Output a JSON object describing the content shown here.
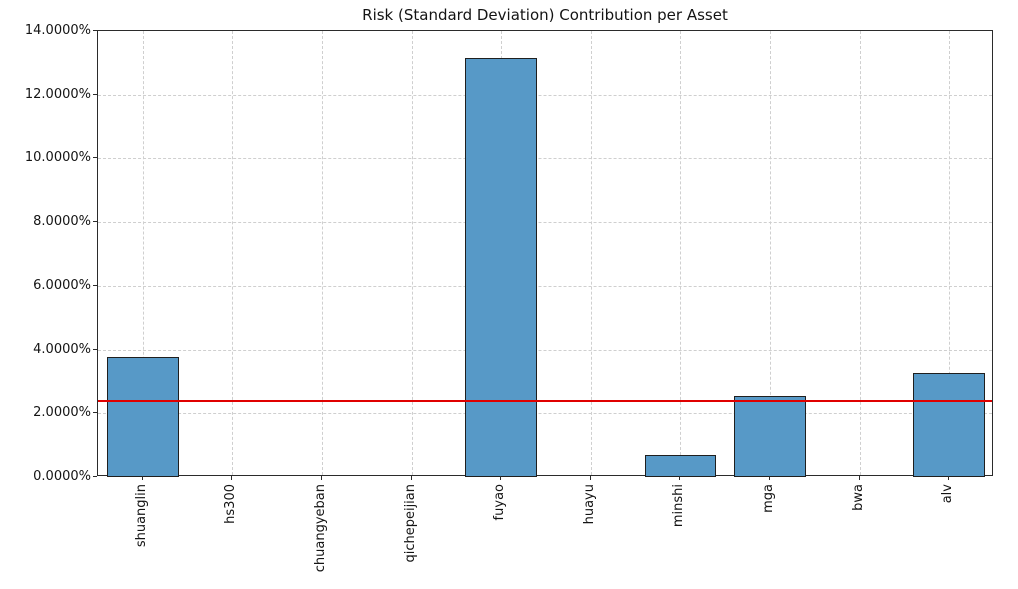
{
  "chart_data": {
    "type": "bar",
    "title": "Risk (Standard Deviation) Contribution per Asset",
    "xlabel": "",
    "ylabel": "",
    "categories": [
      "shuanglin",
      "hs300",
      "chuangyeban",
      "qichepeijian",
      "fuyao",
      "huayu",
      "minshi",
      "mga",
      "bwa",
      "alv"
    ],
    "values": [
      3.78,
      0.0,
      0.0,
      0.0,
      13.15,
      0.0,
      0.7,
      2.55,
      0.0,
      3.27
    ],
    "unit": "%",
    "ylim": [
      0,
      14
    ],
    "y_ticks": [
      0,
      2,
      4,
      6,
      8,
      10,
      12,
      14
    ],
    "y_tick_labels": [
      "0.0000%",
      "2.0000%",
      "4.0000%",
      "6.0000%",
      "8.0000%",
      "10.0000%",
      "12.0000%",
      "14.0000%"
    ],
    "reference_line": {
      "value": 2.37,
      "color": "#e00000",
      "label": ""
    },
    "bar_color": "#5799c7",
    "bar_edge_color": "#1f1f1f",
    "grid": true,
    "legend": null
  }
}
